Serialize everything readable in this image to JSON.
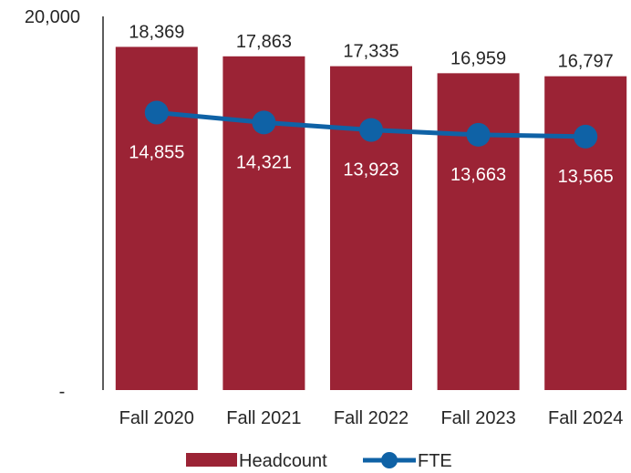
{
  "chart_data": {
    "type": "bar",
    "categories": [
      "Fall 2020",
      "Fall 2021",
      "Fall 2022",
      "Fall 2023",
      "Fall 2024"
    ],
    "series": [
      {
        "name": "Headcount",
        "type": "bar",
        "values": [
          18369,
          17863,
          17335,
          16959,
          16797
        ],
        "labels": [
          "18,369",
          "17,863",
          "17,335",
          "16,959",
          "16,797"
        ],
        "color": "#9B2335"
      },
      {
        "name": "FTE",
        "type": "line",
        "values": [
          14855,
          14321,
          13923,
          13663,
          13565
        ],
        "labels": [
          "14,855",
          "14,321",
          "13,923",
          "13,663",
          "13,565"
        ],
        "color": "#0F62A6"
      }
    ],
    "ylim": [
      0,
      20000
    ],
    "yticks": [
      {
        "value": 20000,
        "label": "20,000"
      },
      {
        "value": 0,
        "label": "-"
      }
    ],
    "grid": false,
    "legend": "bottom",
    "title": "",
    "xlabel": "",
    "ylabel": ""
  }
}
